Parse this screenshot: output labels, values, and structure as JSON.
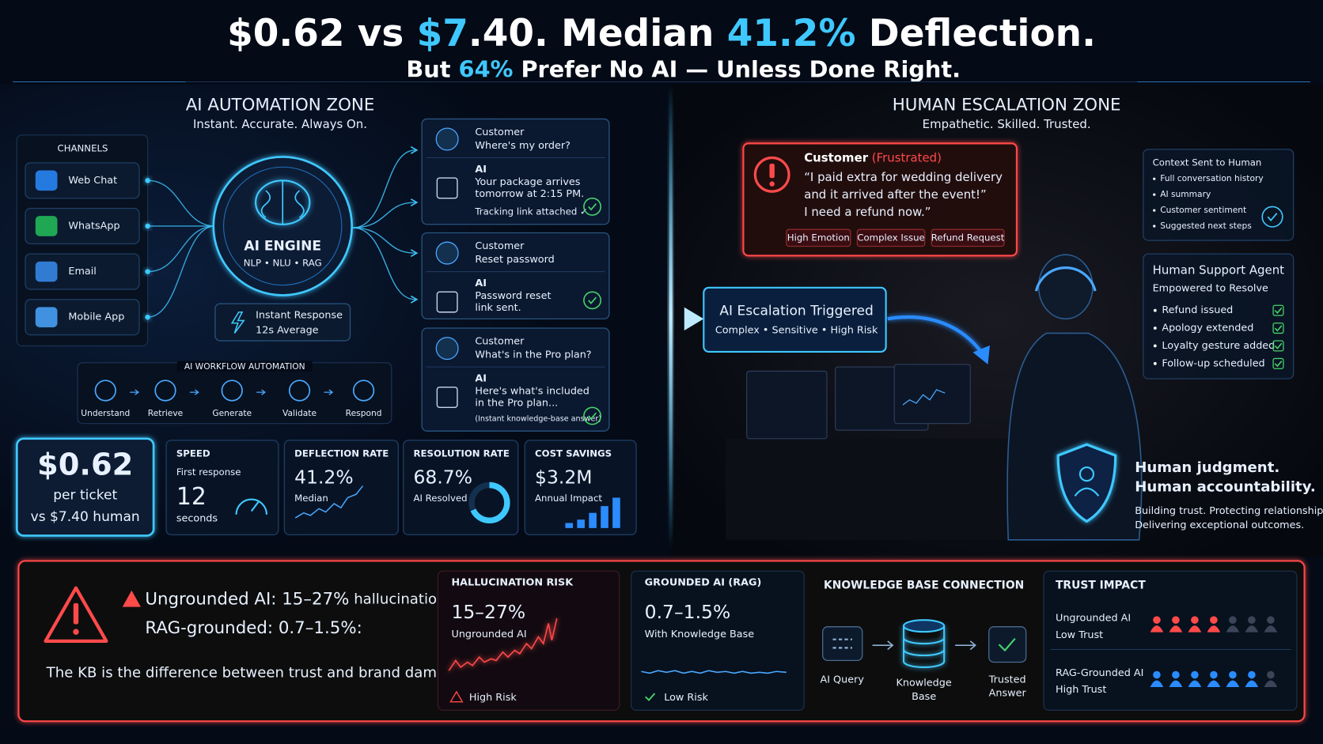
{
  "header": {
    "title": [
      {
        "text": "$0.62 vs ",
        "accent": false
      },
      {
        "text": "$7",
        "accent": true
      },
      {
        "text": ".40. Median ",
        "accent": false
      },
      {
        "text": "41.2%",
        "accent": true
      },
      {
        "text": " Deflection.",
        "accent": false
      }
    ],
    "subtitle": [
      {
        "text": "But ",
        "accent": false
      },
      {
        "text": "64%",
        "accent": true
      },
      {
        "text": " Prefer No AI — Unless Done Right.",
        "accent": false
      }
    ]
  },
  "ai_zone": {
    "title": "AI AUTOMATION ZONE",
    "tagline": "Instant. Accurate. Always On."
  },
  "channels": {
    "heading": "CHANNELS",
    "items": [
      "Web Chat",
      "WhatsApp",
      "Email",
      "Mobile App"
    ]
  },
  "engine": {
    "title": "AI ENGINE",
    "tags": "NLP • NLU • RAG",
    "response": [
      "Instant Response",
      "12s Average"
    ]
  },
  "workflow": {
    "heading": "AI WORKFLOW AUTOMATION",
    "steps": [
      "Understand",
      "Retrieve",
      "Generate",
      "Validate",
      "Respond"
    ]
  },
  "conversations": [
    {
      "customer": "Customer",
      "question": "Where's my order?",
      "ai": "AI",
      "answer": [
        "Your package arrives",
        "tomorrow at 2:15 PM."
      ],
      "note": "Tracking link attached ✓"
    },
    {
      "customer": "Customer",
      "question": "Reset password",
      "ai": "AI",
      "answer": [
        "Password reset",
        "link sent."
      ]
    },
    {
      "customer": "Customer",
      "question": "What's in the Pro plan?",
      "ai": "AI",
      "answer": [
        "Here's what's included",
        "in the Pro plan..."
      ],
      "note": "(Instant knowledge-base answer)"
    }
  ],
  "cost": {
    "value": "$0.62",
    "lines": [
      "per ticket",
      "vs $7.40 human"
    ]
  },
  "metrics": {
    "speed": {
      "label": "SPEED",
      "sub": "First response",
      "value": "12",
      "unit": "seconds"
    },
    "deflection": {
      "label": "DEFLECTION RATE",
      "value": "41.2%",
      "sub": "Median"
    },
    "resolution": {
      "label": "RESOLUTION RATE",
      "value": "68.7%",
      "sub": "AI Resolved"
    },
    "savings": {
      "label": "COST SAVINGS",
      "value": "$3.2M",
      "sub": "Annual Impact"
    }
  },
  "human_zone": {
    "title": "HUMAN ESCALATION ZONE",
    "tagline": "Empathetic. Skilled. Trusted."
  },
  "complaint": {
    "label": "Customer",
    "mood": " (Frustrated)",
    "quote": [
      "“I paid extra for wedding delivery",
      "and it arrived after the event!”",
      "I need a refund now.”"
    ],
    "tags": [
      "High Emotion",
      "Complex Issue",
      "Refund Request"
    ]
  },
  "escalation": {
    "title": "AI Escalation Triggered",
    "sub": "Complex • Sensitive • High Risk"
  },
  "context": {
    "title": "Context Sent to Human",
    "items": [
      "Full conversation history",
      "AI summary",
      "Customer sentiment",
      "Suggested next steps"
    ]
  },
  "agent": {
    "title": "Human Support Agent",
    "sub": "Empowered to Resolve",
    "items": [
      "Refund issued",
      "Apology extended",
      "Loyalty gesture added",
      "Follow-up scheduled"
    ]
  },
  "judgment": {
    "headline": [
      "Human judgment.",
      "Human accountability."
    ],
    "body": [
      "Building trust. Protecting relationships.",
      "Delivering exceptional outcomes."
    ]
  },
  "risk": {
    "line1": {
      "main": "Ungrounded AI: 15–27%",
      "tail": " hallucination."
    },
    "line2": "RAG-grounded: 0.7–1.5%:",
    "caption": "The KB is the difference between trust and brand damage."
  },
  "hallucination": {
    "label": "HALLUCINATION RISK",
    "value": "15–27%",
    "sub": "Ungrounded AI",
    "flag": "High Risk"
  },
  "grounded": {
    "label": "GROUNDED AI (RAG)",
    "value": "0.7–1.5%",
    "sub": "With Knowledge Base",
    "flag": "Low Risk"
  },
  "kb": {
    "heading": "KNOWLEDGE BASE CONNECTION",
    "steps": [
      [
        "AI Query"
      ],
      [
        "Knowledge",
        "Base"
      ],
      [
        "Trusted",
        "Answer"
      ]
    ]
  },
  "trust": {
    "heading": "TRUST IMPACT",
    "rows": [
      {
        "name": "Ungrounded AI",
        "level": "Low Trust"
      },
      {
        "name": "RAG-Grounded AI",
        "level": "High Trust"
      }
    ]
  }
}
